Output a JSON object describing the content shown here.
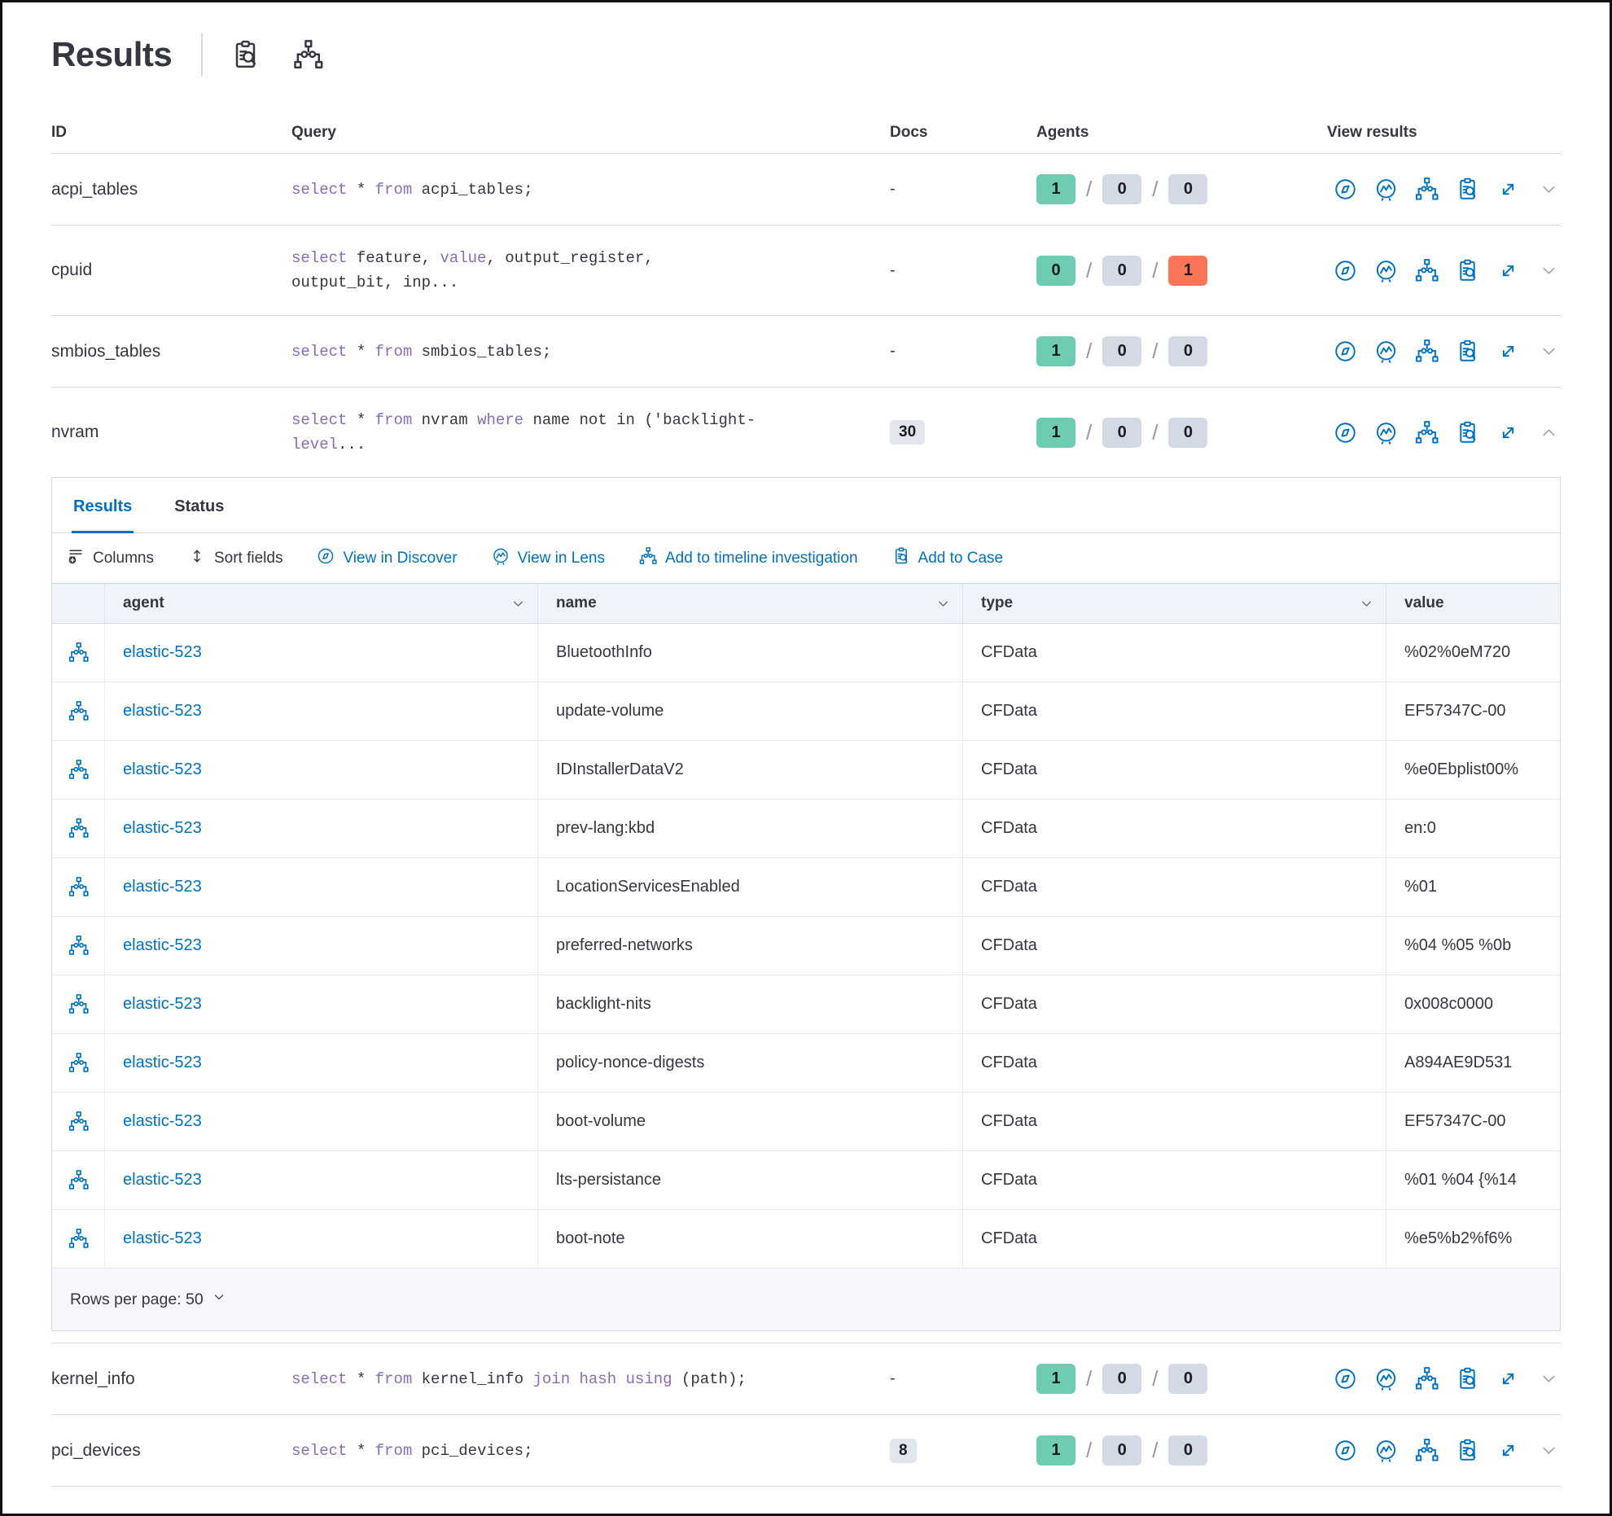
{
  "header": {
    "title": "Results",
    "icons": [
      "inspect-icon",
      "timeline-icon"
    ]
  },
  "colors": {
    "primary_blue": "#0071C2",
    "sql_keyword_purple": "#8A6BB8",
    "badge_success_green": "#6DCCB1",
    "badge_neutral_grey": "#D3DAE6",
    "badge_danger_coral": "#FB7659",
    "text": "#343741",
    "border": "#D3DAE6"
  },
  "table": {
    "columns": [
      "ID",
      "Query",
      "Docs",
      "Agents",
      "View results"
    ],
    "view_results_icons": [
      "discover-icon",
      "lens-icon",
      "timeline-icon",
      "case-icon",
      "expand-icon",
      "chevron-icon"
    ],
    "rows": [
      {
        "id": "acpi_tables",
        "docs": "-",
        "docs_badge": false,
        "expanded": false,
        "agents": {
          "success": "1",
          "pending": "0",
          "failed": "0",
          "failed_danger": false
        },
        "query": [
          {
            "t": "select",
            "k": 1
          },
          {
            "t": " * ",
            "k": 0
          },
          {
            "t": "from",
            "k": 1
          },
          {
            "t": " acpi_tables;",
            "k": 0
          }
        ]
      },
      {
        "id": "cpuid",
        "docs": "-",
        "docs_badge": false,
        "expanded": false,
        "agents": {
          "success": "0",
          "pending": "0",
          "failed": "1",
          "failed_danger": true
        },
        "query": [
          {
            "t": "select",
            "k": 1
          },
          {
            "t": " feature, ",
            "k": 0
          },
          {
            "t": "value",
            "k": 1
          },
          {
            "t": ", output_register, output_bit, inp...",
            "k": 0
          }
        ]
      },
      {
        "id": "smbios_tables",
        "docs": "-",
        "docs_badge": false,
        "expanded": false,
        "agents": {
          "success": "1",
          "pending": "0",
          "failed": "0",
          "failed_danger": false
        },
        "query": [
          {
            "t": "select",
            "k": 1
          },
          {
            "t": " * ",
            "k": 0
          },
          {
            "t": "from",
            "k": 1
          },
          {
            "t": " smbios_tables;",
            "k": 0
          }
        ]
      },
      {
        "id": "nvram",
        "docs": "30",
        "docs_badge": true,
        "expanded": true,
        "agents": {
          "success": "1",
          "pending": "0",
          "failed": "0",
          "failed_danger": false
        },
        "query": [
          {
            "t": "select",
            "k": 1
          },
          {
            "t": " * ",
            "k": 0
          },
          {
            "t": "from",
            "k": 1
          },
          {
            "t": " nvram ",
            "k": 0
          },
          {
            "t": "where",
            "k": 1
          },
          {
            "t": " name not in ('backlight-",
            "k": 0
          },
          {
            "t": "level",
            "k": 1
          },
          {
            "t": "...",
            "k": 0
          }
        ]
      },
      {
        "id": "kernel_info",
        "docs": "-",
        "docs_badge": false,
        "expanded": false,
        "agents": {
          "success": "1",
          "pending": "0",
          "failed": "0",
          "failed_danger": false
        },
        "query": [
          {
            "t": "select",
            "k": 1
          },
          {
            "t": " * ",
            "k": 0
          },
          {
            "t": "from",
            "k": 1
          },
          {
            "t": " kernel_info ",
            "k": 0
          },
          {
            "t": "join",
            "k": 1
          },
          {
            "t": " ",
            "k": 0
          },
          {
            "t": "hash",
            "k": 1
          },
          {
            "t": " ",
            "k": 0
          },
          {
            "t": "using",
            "k": 1
          },
          {
            "t": " (path);",
            "k": 0
          }
        ]
      },
      {
        "id": "pci_devices",
        "docs": "8",
        "docs_badge": true,
        "expanded": false,
        "agents": {
          "success": "1",
          "pending": "0",
          "failed": "0",
          "failed_danger": false
        },
        "query": [
          {
            "t": "select",
            "k": 1
          },
          {
            "t": " * ",
            "k": 0
          },
          {
            "t": "from",
            "k": 1
          },
          {
            "t": " pci_devices;",
            "k": 0
          }
        ]
      }
    ]
  },
  "panel": {
    "tabs": [
      {
        "label": "Results",
        "active": true
      },
      {
        "label": "Status",
        "active": false
      }
    ],
    "toolbar": [
      {
        "label": "Columns",
        "icon": "columns-icon",
        "style": "dark"
      },
      {
        "label": "Sort fields",
        "icon": "sort-icon",
        "style": "dark"
      },
      {
        "label": "View in Discover",
        "icon": "discover-icon",
        "style": "link"
      },
      {
        "label": "View in Lens",
        "icon": "lens-icon",
        "style": "link"
      },
      {
        "label": "Add to timeline investigation",
        "icon": "timeline-icon",
        "style": "link"
      },
      {
        "label": "Add to Case",
        "icon": "case-icon",
        "style": "link"
      }
    ],
    "grid": {
      "columns": [
        "agent",
        "name",
        "type",
        "value"
      ],
      "row_icon": "timeline-icon",
      "rows": [
        {
          "agent": "elastic-523",
          "name": "BluetoothInfo",
          "type": "CFData",
          "value": "%02%0eM720"
        },
        {
          "agent": "elastic-523",
          "name": "update-volume",
          "type": "CFData",
          "value": "EF57347C-00"
        },
        {
          "agent": "elastic-523",
          "name": "IDInstallerDataV2",
          "type": "CFData",
          "value": "%e0Ebplist00%"
        },
        {
          "agent": "elastic-523",
          "name": "prev-lang:kbd",
          "type": "CFData",
          "value": "en:0"
        },
        {
          "agent": "elastic-523",
          "name": "LocationServicesEnabled",
          "type": "CFData",
          "value": "%01"
        },
        {
          "agent": "elastic-523",
          "name": "preferred-networks",
          "type": "CFData",
          "value": "%04 %05 %0b"
        },
        {
          "agent": "elastic-523",
          "name": "backlight-nits",
          "type": "CFData",
          "value": "0x008c0000"
        },
        {
          "agent": "elastic-523",
          "name": "policy-nonce-digests",
          "type": "CFData",
          "value": "A894AE9D531"
        },
        {
          "agent": "elastic-523",
          "name": "boot-volume",
          "type": "CFData",
          "value": "EF57347C-00"
        },
        {
          "agent": "elastic-523",
          "name": "lts-persistance",
          "type": "CFData",
          "value": "%01 %04 {%14"
        },
        {
          "agent": "elastic-523",
          "name": "boot-note",
          "type": "CFData",
          "value": "%e5%b2%f6%"
        }
      ]
    },
    "pagination": {
      "label": "Rows per page: 50"
    }
  }
}
